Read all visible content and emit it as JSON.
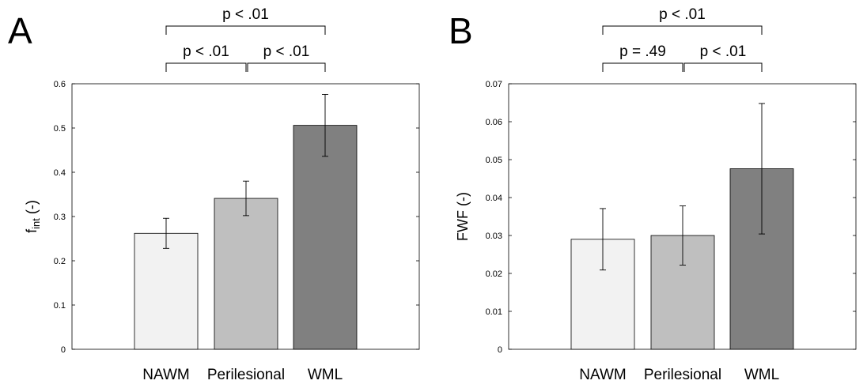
{
  "chart_data": [
    {
      "type": "bar",
      "panel_label": "A",
      "categories": [
        "NAWM",
        "Perilesional",
        "WML"
      ],
      "values": [
        0.262,
        0.341,
        0.506
      ],
      "errors": [
        0.034,
        0.039,
        0.07
      ],
      "colors": [
        "#f2f2f2",
        "#bfbfbf",
        "#808080"
      ],
      "ylabel_main": "f",
      "ylabel_sub": "int",
      "ylabel_suffix": " (-)",
      "ylim": [
        0,
        0.6
      ],
      "yticks": [
        0,
        0.1,
        0.2,
        0.3,
        0.4,
        0.5,
        0.6
      ],
      "ytick_labels": [
        "0",
        "0.1",
        "0.2",
        "0.3",
        "0.4",
        "0.5",
        "0.6"
      ],
      "comparisons": [
        {
          "from": 0,
          "to": 1,
          "label": "p < .01",
          "level": 1
        },
        {
          "from": 1,
          "to": 2,
          "label": "p < .01",
          "level": 1
        },
        {
          "from": 0,
          "to": 2,
          "label": "p < .01",
          "level": 2
        }
      ]
    },
    {
      "type": "bar",
      "panel_label": "B",
      "categories": [
        "NAWM",
        "Perilesional",
        "WML"
      ],
      "values": [
        0.029,
        0.03,
        0.0476
      ],
      "errors": [
        0.0081,
        0.0078,
        0.0172
      ],
      "colors": [
        "#f2f2f2",
        "#bfbfbf",
        "#808080"
      ],
      "ylabel_main": "FWF (-)",
      "ylabel_sub": "",
      "ylabel_suffix": "",
      "ylim": [
        0,
        0.07
      ],
      "yticks": [
        0,
        0.01,
        0.02,
        0.03,
        0.04,
        0.05,
        0.06,
        0.07
      ],
      "ytick_labels": [
        "0",
        "0.01",
        "0.02",
        "0.03",
        "0.04",
        "0.05",
        "0.06",
        "0.07"
      ],
      "comparisons": [
        {
          "from": 0,
          "to": 1,
          "label": "p = .49",
          "level": 1
        },
        {
          "from": 1,
          "to": 2,
          "label": "p < .01",
          "level": 1
        },
        {
          "from": 0,
          "to": 2,
          "label": "p < .01",
          "level": 2
        }
      ]
    }
  ]
}
